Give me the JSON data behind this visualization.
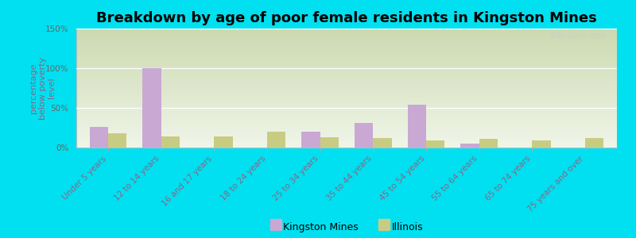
{
  "title": "Breakdown by age of poor female residents in Kingston Mines",
  "ylabel": "percentage\nbelow poverty\nlevel",
  "categories": [
    "Under 5 years",
    "12 to 14 years",
    "16 and 17 years",
    "18 to 24 years",
    "25 to 34 years",
    "35 to 44 years",
    "45 to 54 years",
    "55 to 64 years",
    "65 to 74 years",
    "75 years and over"
  ],
  "kingston_mines": [
    26,
    100,
    0,
    0,
    20,
    31,
    54,
    5,
    0,
    0
  ],
  "illinois": [
    18,
    14,
    14,
    20,
    13,
    12,
    9,
    11,
    9,
    12
  ],
  "kingston_color": "#c9a8d4",
  "illinois_color": "#c8cc82",
  "ylim": [
    0,
    150
  ],
  "yticks": [
    0,
    50,
    100,
    150
  ],
  "ytick_labels": [
    "0%",
    "50%",
    "100%",
    "150%"
  ],
  "bar_width": 0.35,
  "bg_color_top": "#ccd9b0",
  "bg_color_bottom": "#f0f5e8",
  "outer_bg": "#00e0f0",
  "title_fontsize": 13,
  "axis_label_fontsize": 8,
  "tick_label_fontsize": 7.5,
  "legend_fontsize": 9,
  "xtick_color": "#886688",
  "ytick_color": "#666666",
  "ylabel_color": "#886688",
  "watermark": "City-Data.com"
}
